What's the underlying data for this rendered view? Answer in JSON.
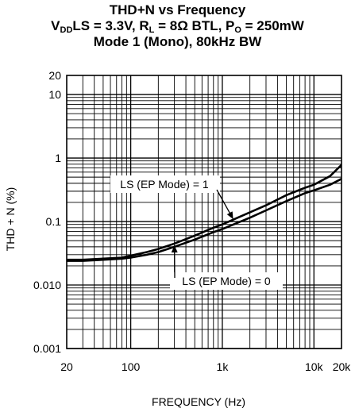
{
  "chart_data": {
    "type": "line",
    "title": "THD+N vs Frequency",
    "subtitle": {
      "line1": {
        "a": "V",
        "a_sub": "DD",
        "b": "LS = 3.3V, R",
        "b_sub": "L",
        "c": " = 8Ω BTL, P",
        "c_sub": "O",
        "d": " = 250mW"
      },
      "line2": "Mode 1 (Mono), 80kHz BW"
    },
    "xlabel": "FREQUENCY (Hz)",
    "ylabel": "THD + N (%)",
    "x_scale": "log",
    "y_scale": "log",
    "xlim": [
      20,
      20000
    ],
    "ylim": [
      0.001,
      20
    ],
    "grid": true,
    "x_ticks": [
      {
        "value": 20,
        "label": "20"
      },
      {
        "value": 100,
        "label": "100"
      },
      {
        "value": 1000,
        "label": "1k"
      },
      {
        "value": 10000,
        "label": "10k"
      },
      {
        "value": 20000,
        "label": "20k"
      }
    ],
    "y_ticks": [
      {
        "value": 20,
        "label": "20"
      },
      {
        "value": 10,
        "label": "10"
      },
      {
        "value": 1,
        "label": "1"
      },
      {
        "value": 0.1,
        "label": "0.1"
      },
      {
        "value": 0.01,
        "label": "0.010"
      },
      {
        "value": 0.001,
        "label": "0.001"
      }
    ],
    "series": [
      {
        "name": "LS (EP Mode) = 1",
        "x": [
          20,
          30,
          50,
          80,
          100,
          150,
          200,
          300,
          500,
          800,
          1000,
          2000,
          3000,
          5000,
          8000,
          10000,
          15000,
          20000
        ],
        "y": [
          0.025,
          0.025,
          0.026,
          0.027,
          0.029,
          0.033,
          0.037,
          0.045,
          0.06,
          0.08,
          0.09,
          0.14,
          0.18,
          0.26,
          0.34,
          0.38,
          0.52,
          0.78
        ]
      },
      {
        "name": "LS (EP Mode) = 0",
        "x": [
          20,
          30,
          50,
          80,
          100,
          150,
          200,
          300,
          500,
          800,
          1000,
          2000,
          3000,
          5000,
          8000,
          10000,
          15000,
          20000
        ],
        "y": [
          0.024,
          0.024,
          0.025,
          0.026,
          0.027,
          0.03,
          0.033,
          0.04,
          0.052,
          0.068,
          0.076,
          0.115,
          0.15,
          0.21,
          0.28,
          0.31,
          0.38,
          0.47
        ]
      }
    ],
    "annotations": [
      {
        "text": "LS (EP Mode) = 1",
        "series": 0
      },
      {
        "text": "LS (EP Mode) = 0",
        "series": 1
      }
    ]
  }
}
